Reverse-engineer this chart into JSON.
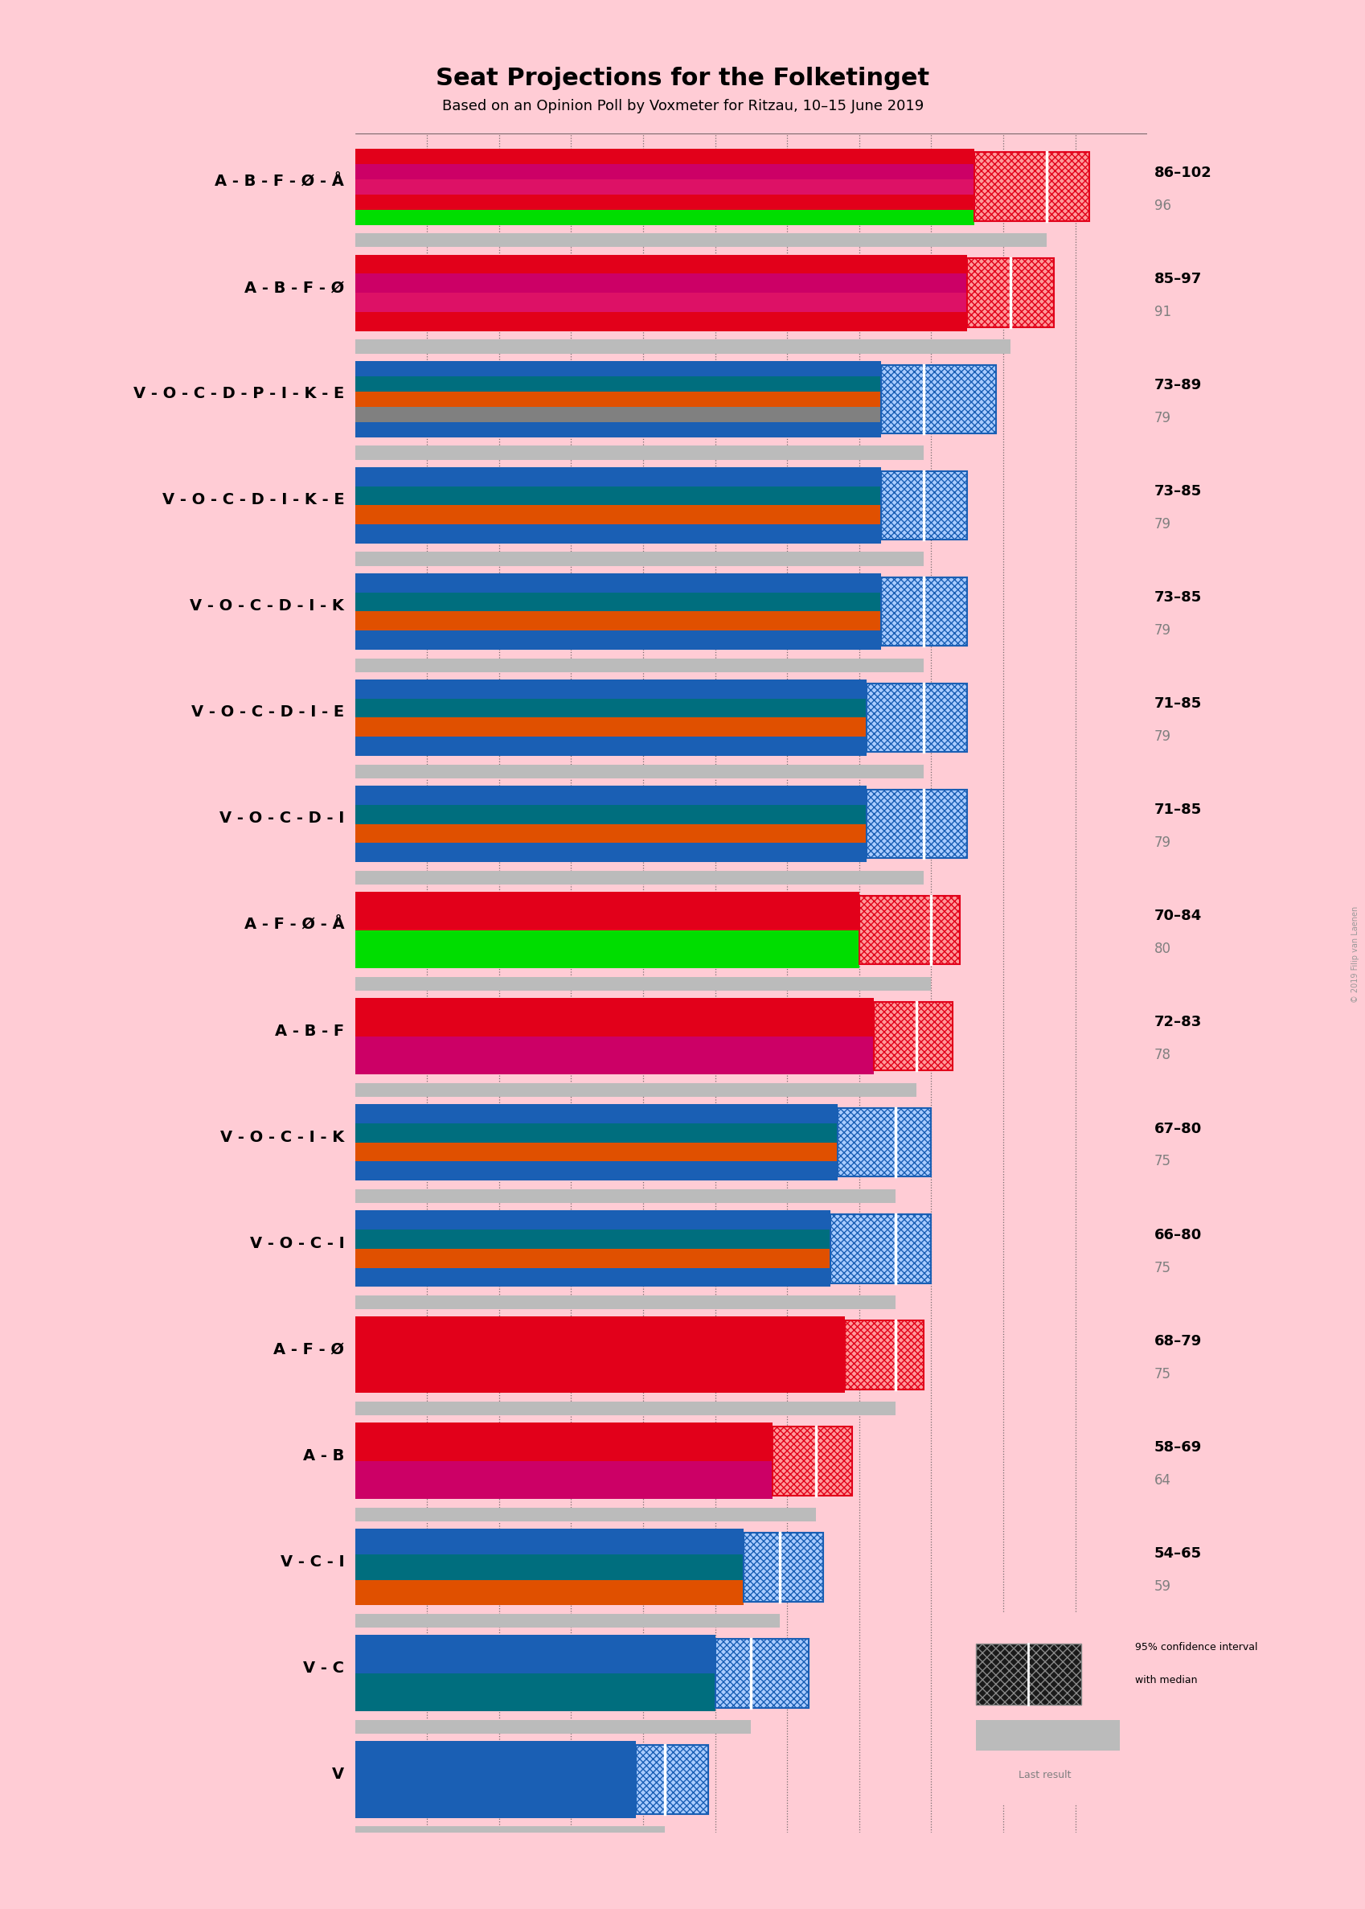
{
  "title": "Seat Projections for the Folketinget",
  "subtitle": "Based on an Opinion Poll by Voxmeter for Ritzau, 10–15 June 2019",
  "copyright": "© 2019 Filip van Laenen",
  "background_color": "#FFCCD5",
  "xlim_max": 110,
  "coalitions": [
    {
      "label": "A - B - F - Ø - Å",
      "ci_low": 86,
      "ci_high": 102,
      "median": 96,
      "last_result": 96,
      "underline": false,
      "bar_colors": [
        "#E2001A",
        "#CC0066",
        "#DD1166",
        "#E2001A",
        "#00DD00"
      ],
      "n_stripes": 5,
      "ci_hatch_color": "#E2001A",
      "ci_face_color": "#FF9999"
    },
    {
      "label": "A - B - F - Ø",
      "ci_low": 85,
      "ci_high": 97,
      "median": 91,
      "last_result": 91,
      "underline": true,
      "bar_colors": [
        "#E2001A",
        "#CC0066",
        "#DD1166",
        "#E2001A"
      ],
      "n_stripes": 4,
      "ci_hatch_color": "#E2001A",
      "ci_face_color": "#FF9999"
    },
    {
      "label": "V - O - C - D - P - I - K - E",
      "ci_low": 73,
      "ci_high": 89,
      "median": 79,
      "last_result": 79,
      "underline": false,
      "bar_colors": [
        "#1A5FB4",
        "#006E7E",
        "#E05000",
        "#808080",
        "#1A5FB4"
      ],
      "n_stripes": 5,
      "ci_hatch_color": "#1A5FB4",
      "ci_face_color": "#AACCFF"
    },
    {
      "label": "V - O - C - D - I - K - E",
      "ci_low": 73,
      "ci_high": 85,
      "median": 79,
      "last_result": 79,
      "underline": false,
      "bar_colors": [
        "#1A5FB4",
        "#006E7E",
        "#E05000",
        "#1A5FB4"
      ],
      "n_stripes": 4,
      "ci_hatch_color": "#1A5FB4",
      "ci_face_color": "#AACCFF"
    },
    {
      "label": "V - O - C - D - I - K",
      "ci_low": 73,
      "ci_high": 85,
      "median": 79,
      "last_result": 79,
      "underline": false,
      "bar_colors": [
        "#1A5FB4",
        "#006E7E",
        "#E05000",
        "#1A5FB4"
      ],
      "n_stripes": 4,
      "ci_hatch_color": "#1A5FB4",
      "ci_face_color": "#AACCFF"
    },
    {
      "label": "V - O - C - D - I - E",
      "ci_low": 71,
      "ci_high": 85,
      "median": 79,
      "last_result": 79,
      "underline": false,
      "bar_colors": [
        "#1A5FB4",
        "#006E7E",
        "#E05000",
        "#1A5FB4"
      ],
      "n_stripes": 4,
      "ci_hatch_color": "#1A5FB4",
      "ci_face_color": "#AACCFF"
    },
    {
      "label": "V - O - C - D - I",
      "ci_low": 71,
      "ci_high": 85,
      "median": 79,
      "last_result": 79,
      "underline": false,
      "bar_colors": [
        "#1A5FB4",
        "#006E7E",
        "#E05000",
        "#1A5FB4"
      ],
      "n_stripes": 4,
      "ci_hatch_color": "#1A5FB4",
      "ci_face_color": "#AACCFF"
    },
    {
      "label": "A - F - Ø - Å",
      "ci_low": 70,
      "ci_high": 84,
      "median": 80,
      "last_result": 80,
      "underline": false,
      "bar_colors": [
        "#E2001A",
        "#00DD00"
      ],
      "n_stripes": 2,
      "ci_hatch_color": "#E2001A",
      "ci_face_color": "#FF9999"
    },
    {
      "label": "A - B - F",
      "ci_low": 72,
      "ci_high": 83,
      "median": 78,
      "last_result": 78,
      "underline": false,
      "bar_colors": [
        "#E2001A",
        "#CC0066"
      ],
      "n_stripes": 2,
      "ci_hatch_color": "#E2001A",
      "ci_face_color": "#FF9999"
    },
    {
      "label": "V - O - C - I - K",
      "ci_low": 67,
      "ci_high": 80,
      "median": 75,
      "last_result": 75,
      "underline": false,
      "bar_colors": [
        "#1A5FB4",
        "#006E7E",
        "#E05000",
        "#1A5FB4"
      ],
      "n_stripes": 4,
      "ci_hatch_color": "#1A5FB4",
      "ci_face_color": "#AACCFF"
    },
    {
      "label": "V - O - C - I",
      "ci_low": 66,
      "ci_high": 80,
      "median": 75,
      "last_result": 75,
      "underline": false,
      "bar_colors": [
        "#1A5FB4",
        "#006E7E",
        "#E05000",
        "#1A5FB4"
      ],
      "n_stripes": 4,
      "ci_hatch_color": "#1A5FB4",
      "ci_face_color": "#AACCFF"
    },
    {
      "label": "A - F - Ø",
      "ci_low": 68,
      "ci_high": 79,
      "median": 75,
      "last_result": 75,
      "underline": false,
      "bar_colors": [
        "#E2001A"
      ],
      "n_stripes": 1,
      "ci_hatch_color": "#E2001A",
      "ci_face_color": "#FF9999"
    },
    {
      "label": "A - B",
      "ci_low": 58,
      "ci_high": 69,
      "median": 64,
      "last_result": 64,
      "underline": false,
      "bar_colors": [
        "#E2001A",
        "#CC0066"
      ],
      "n_stripes": 2,
      "ci_hatch_color": "#E2001A",
      "ci_face_color": "#FF9999"
    },
    {
      "label": "V - C - I",
      "ci_low": 54,
      "ci_high": 65,
      "median": 59,
      "last_result": 59,
      "underline": false,
      "bar_colors": [
        "#1A5FB4",
        "#006E7E",
        "#E05000"
      ],
      "n_stripes": 3,
      "ci_hatch_color": "#1A5FB4",
      "ci_face_color": "#AACCFF"
    },
    {
      "label": "V - C",
      "ci_low": 50,
      "ci_high": 63,
      "median": 55,
      "last_result": 55,
      "underline": false,
      "bar_colors": [
        "#1A5FB4",
        "#006E7E"
      ],
      "n_stripes": 2,
      "ci_hatch_color": "#1A5FB4",
      "ci_face_color": "#AACCFF"
    },
    {
      "label": "V",
      "ci_low": 39,
      "ci_high": 49,
      "median": 43,
      "last_result": 43,
      "underline": false,
      "bar_colors": [
        "#1A5FB4"
      ],
      "n_stripes": 1,
      "ci_hatch_color": "#1A5FB4",
      "ci_face_color": "#AACCFF"
    }
  ],
  "last_result_color": "#BBBBBB",
  "label_fontsize": 14,
  "range_fontsize": 13,
  "median_fontsize": 12
}
